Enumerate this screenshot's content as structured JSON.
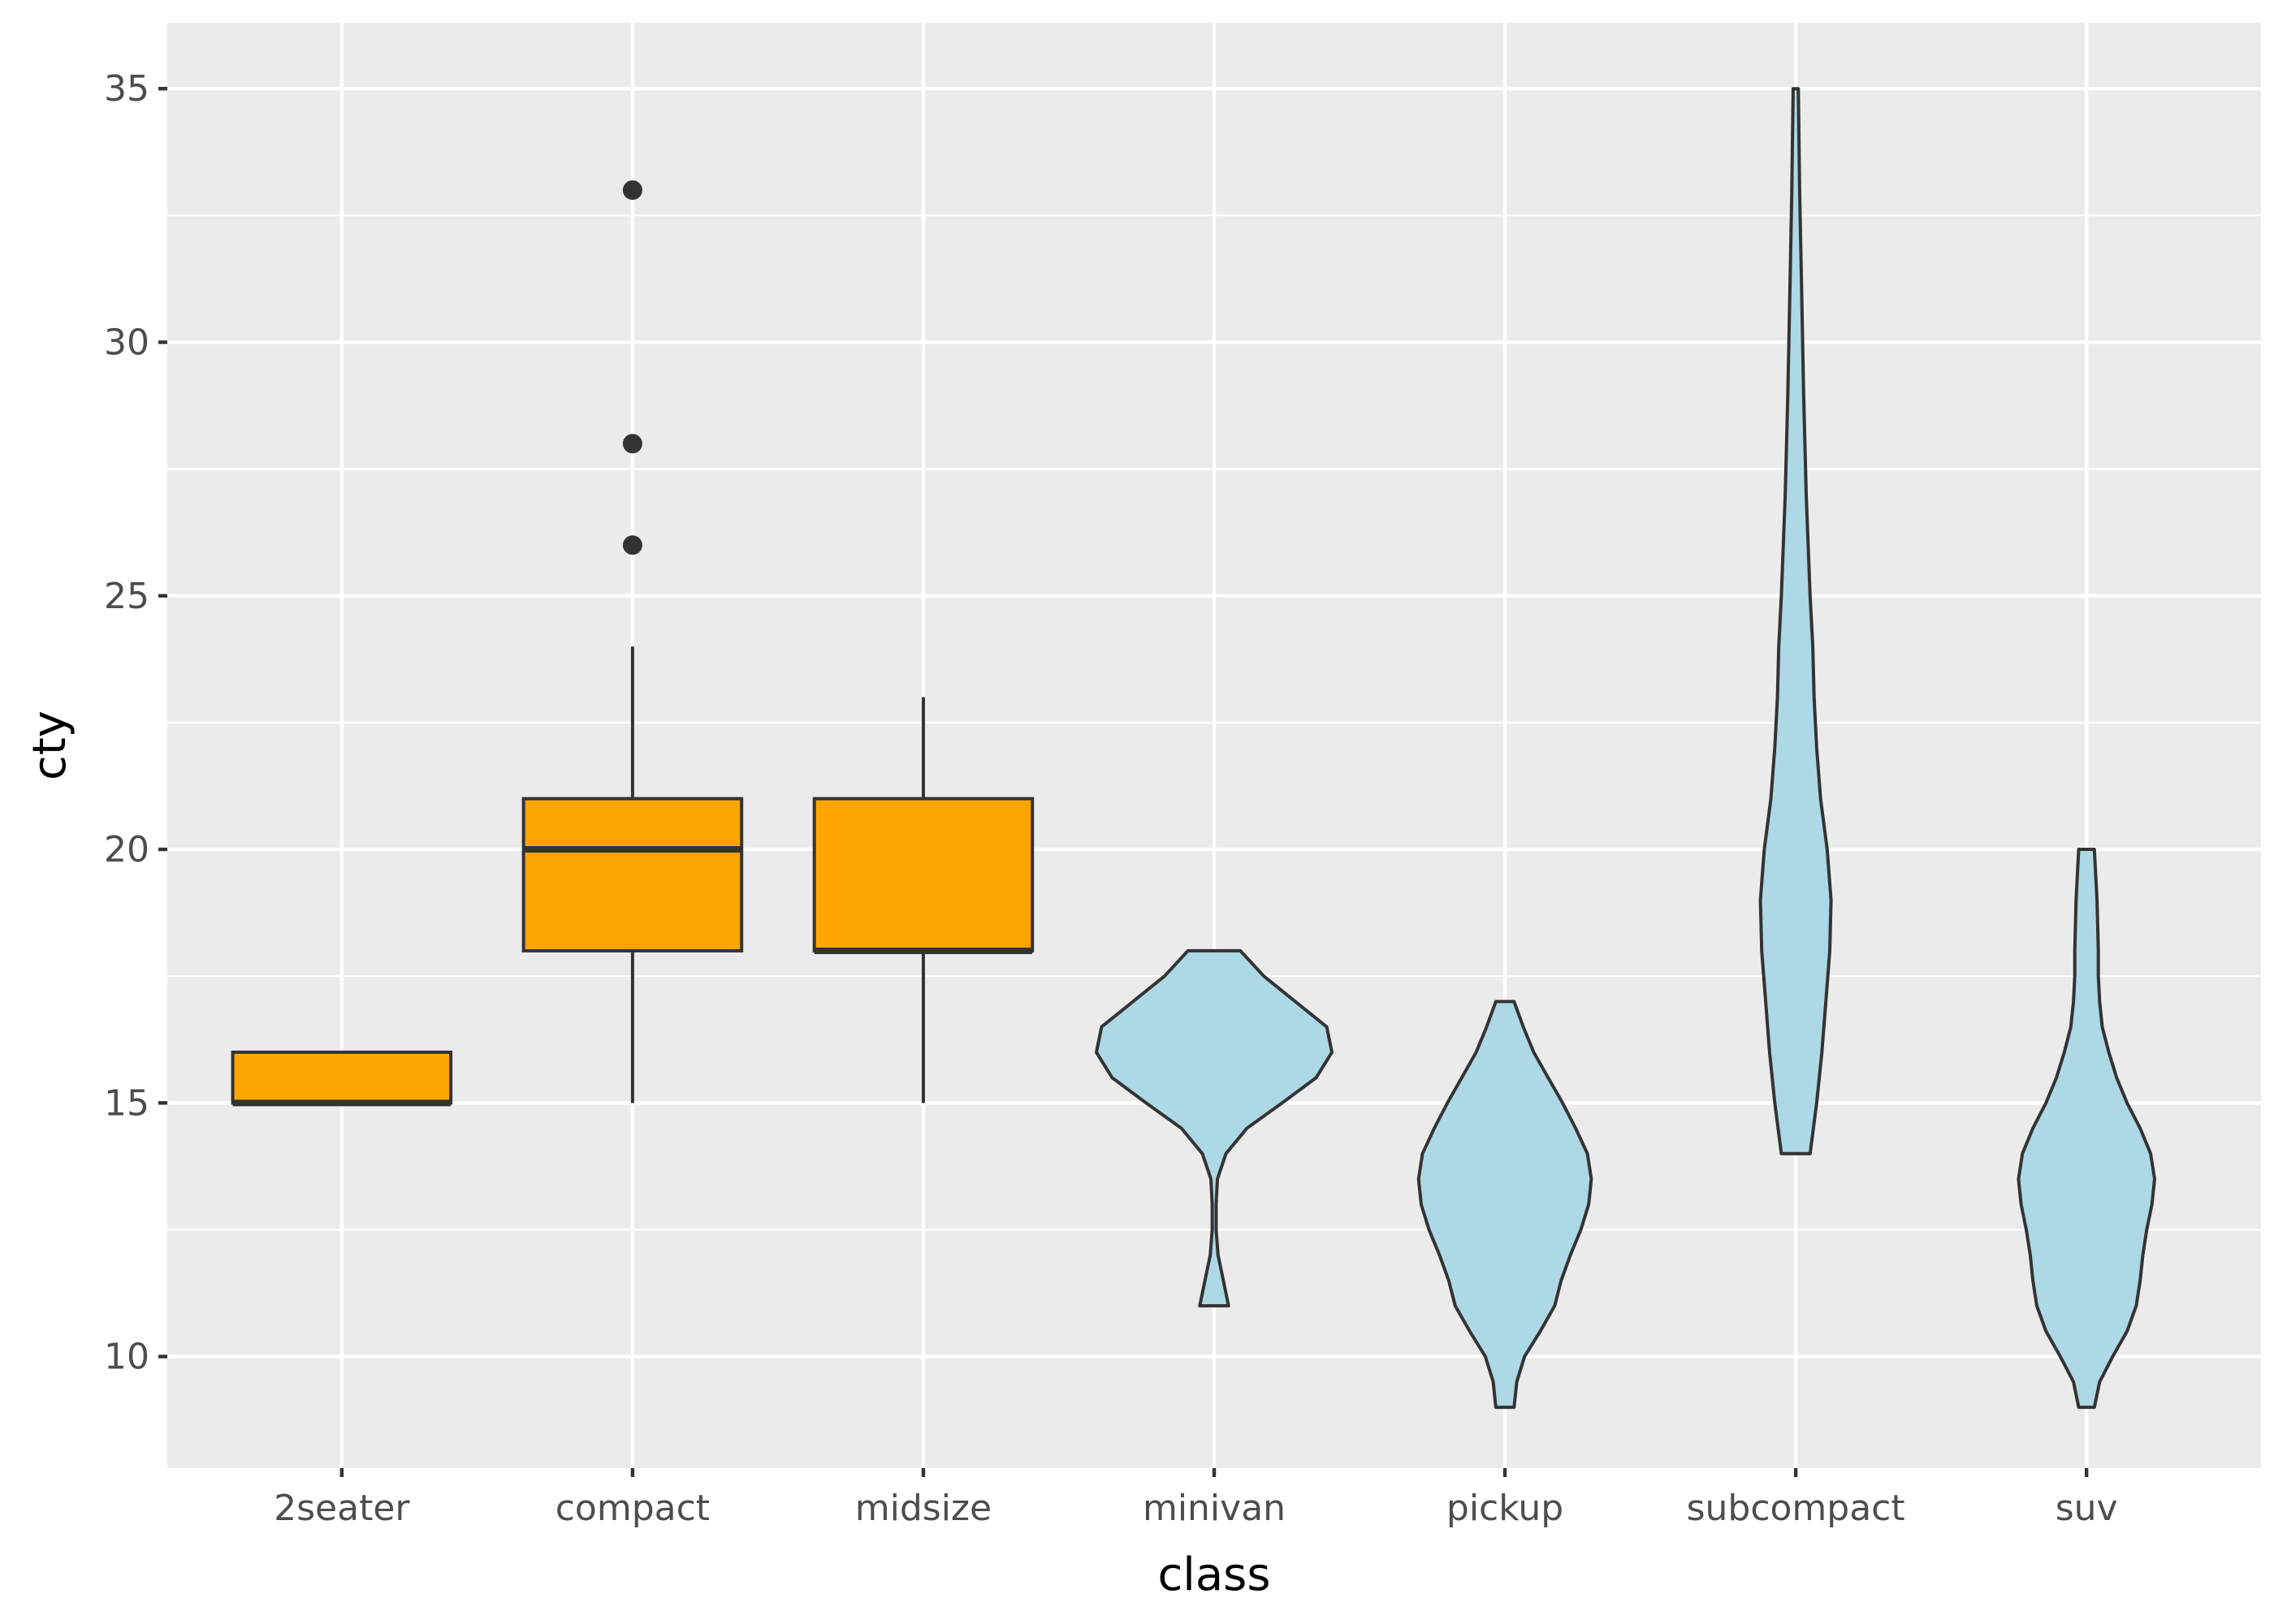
{
  "chart_data": {
    "type": "box-violin",
    "title": "",
    "xlabel": "class",
    "ylabel": "cty",
    "ylim": [
      7.8,
      36.3
    ],
    "yticks": [
      10,
      15,
      20,
      25,
      30,
      35
    ],
    "yminor": [
      12.5,
      17.5,
      22.5,
      27.5,
      32.5
    ],
    "categories": [
      "2seater",
      "compact",
      "midsize",
      "minivan",
      "pickup",
      "subcompact",
      "suv"
    ],
    "colors": {
      "panel": "#ebebeb",
      "box_fill": "#ffa500",
      "violin_fill": "#add8e6",
      "outline": "#333333"
    },
    "boxplots": [
      {
        "category": "2seater",
        "q1": 15,
        "median": 15,
        "q3": 16,
        "whisker_low": 15,
        "whisker_high": 16,
        "outliers": []
      },
      {
        "category": "compact",
        "q1": 18,
        "median": 20,
        "q3": 21,
        "whisker_low": 15,
        "whisker_high": 24,
        "outliers": [
          26,
          28,
          33
        ]
      },
      {
        "category": "midsize",
        "q1": 18,
        "median": 18,
        "q3": 21,
        "whisker_low": 15,
        "whisker_high": 23,
        "outliers": []
      }
    ],
    "violins": [
      {
        "category": "minivan",
        "profile": [
          [
            11,
            0.11
          ],
          [
            11.5,
            0.07
          ],
          [
            12,
            0.03
          ],
          [
            12.5,
            0.015
          ],
          [
            13,
            0.015
          ],
          [
            13.5,
            0.025
          ],
          [
            14,
            0.09
          ],
          [
            14.5,
            0.25
          ],
          [
            15,
            0.52
          ],
          [
            15.5,
            0.78
          ],
          [
            16,
            0.9
          ],
          [
            16.5,
            0.86
          ],
          [
            17,
            0.62
          ],
          [
            17.5,
            0.38
          ],
          [
            18,
            0.2
          ]
        ]
      },
      {
        "category": "pickup",
        "profile": [
          [
            9,
            0.07
          ],
          [
            9.5,
            0.09
          ],
          [
            10,
            0.15
          ],
          [
            10.5,
            0.27
          ],
          [
            11,
            0.38
          ],
          [
            11.5,
            0.43
          ],
          [
            12,
            0.5
          ],
          [
            12.5,
            0.58
          ],
          [
            13,
            0.64
          ],
          [
            13.5,
            0.66
          ],
          [
            14,
            0.63
          ],
          [
            14.5,
            0.54
          ],
          [
            15,
            0.44
          ],
          [
            15.5,
            0.33
          ],
          [
            16,
            0.22
          ],
          [
            16.5,
            0.14
          ],
          [
            17,
            0.07
          ]
        ]
      },
      {
        "category": "subcompact",
        "profile": [
          [
            14,
            0.11
          ],
          [
            15,
            0.16
          ],
          [
            16,
            0.2
          ],
          [
            17,
            0.23
          ],
          [
            18,
            0.26
          ],
          [
            19,
            0.27
          ],
          [
            20,
            0.24
          ],
          [
            21,
            0.19
          ],
          [
            22,
            0.16
          ],
          [
            23,
            0.14
          ],
          [
            24,
            0.13
          ],
          [
            25,
            0.11
          ],
          [
            27,
            0.08
          ],
          [
            29,
            0.06
          ],
          [
            31,
            0.045
          ],
          [
            33,
            0.03
          ],
          [
            35,
            0.02
          ]
        ]
      },
      {
        "category": "suv",
        "profile": [
          [
            9,
            0.06
          ],
          [
            9.5,
            0.1
          ],
          [
            10,
            0.2
          ],
          [
            10.5,
            0.31
          ],
          [
            11,
            0.38
          ],
          [
            11.5,
            0.41
          ],
          [
            12,
            0.43
          ],
          [
            12.5,
            0.46
          ],
          [
            13,
            0.5
          ],
          [
            13.5,
            0.52
          ],
          [
            14,
            0.49
          ],
          [
            14.5,
            0.41
          ],
          [
            15,
            0.31
          ],
          [
            15.5,
            0.23
          ],
          [
            16,
            0.17
          ],
          [
            16.5,
            0.12
          ],
          [
            17,
            0.1
          ],
          [
            17.5,
            0.09
          ],
          [
            18,
            0.09
          ],
          [
            19,
            0.08
          ],
          [
            20,
            0.06
          ]
        ]
      }
    ]
  }
}
